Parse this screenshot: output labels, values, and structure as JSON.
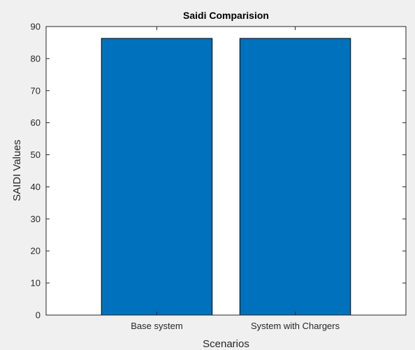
{
  "chart_data": {
    "type": "bar",
    "title": "Saidi Comparision",
    "xlabel": "Scenarios",
    "ylabel": "SAIDI Values",
    "categories": [
      "Base system",
      "System with Chargers"
    ],
    "values": [
      86.3,
      86.3
    ],
    "ylim": [
      0,
      90
    ],
    "yticks": [
      0,
      10,
      20,
      30,
      40,
      50,
      60,
      70,
      80,
      90
    ],
    "grid": false,
    "legend": "none",
    "colors": {
      "bar": "#0072bd",
      "bar_edge": "#000000",
      "axes_background": "#ffffff",
      "figure_background": "#f0f0f0"
    }
  }
}
